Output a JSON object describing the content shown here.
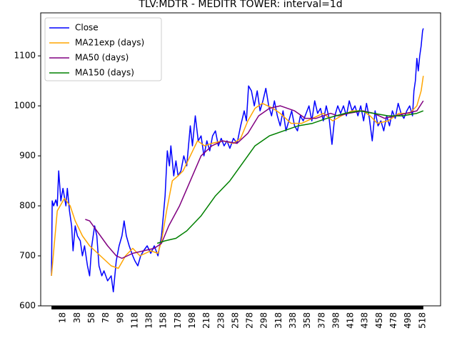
{
  "chart_data": {
    "type": "line",
    "title": "TLV:MDTR - MEDITR TOWER: interval=1d",
    "xlim": [
      -13,
      543
    ],
    "ylim": [
      600,
      1186
    ],
    "xticks": [
      18,
      38,
      58,
      78,
      98,
      118,
      138,
      158,
      178,
      198,
      218,
      238,
      258,
      278,
      298,
      318,
      338,
      358,
      378,
      398,
      418,
      438,
      458,
      478,
      498,
      518
    ],
    "yticks": [
      600,
      700,
      800,
      900,
      1000,
      1100
    ],
    "legend": "upper left",
    "grid": false,
    "series": [
      {
        "name": "Close",
        "color": "#0000ff",
        "x": [
          2,
          3,
          5,
          8,
          10,
          12,
          15,
          18,
          22,
          24,
          27,
          30,
          32,
          35,
          38,
          42,
          45,
          48,
          52,
          55,
          58,
          62,
          65,
          68,
          72,
          75,
          80,
          85,
          88,
          92,
          96,
          100,
          103,
          106,
          110,
          115,
          118,
          122,
          126,
          130,
          135,
          140,
          145,
          150,
          155,
          160,
          163,
          166,
          168,
          172,
          175,
          178,
          182,
          186,
          190,
          195,
          198,
          202,
          206,
          210,
          214,
          218,
          222,
          226,
          230,
          234,
          238,
          242,
          246,
          250,
          255,
          260,
          265,
          270,
          273,
          276,
          280,
          284,
          288,
          292,
          296,
          300,
          304,
          308,
          312,
          316,
          320,
          324,
          328,
          332,
          336,
          340,
          344,
          348,
          352,
          356,
          360,
          364,
          368,
          372,
          376,
          380,
          384,
          388,
          392,
          396,
          400,
          404,
          408,
          412,
          416,
          420,
          424,
          428,
          432,
          436,
          440,
          444,
          448,
          452,
          456,
          460,
          464,
          468,
          472,
          476,
          480,
          484,
          488,
          492,
          496,
          500,
          504,
          506,
          508,
          510,
          512,
          514,
          516,
          518,
          519
        ],
        "values": [
          660,
          810,
          800,
          812,
          800,
          870,
          810,
          835,
          800,
          835,
          790,
          760,
          710,
          760,
          740,
          730,
          700,
          720,
          680,
          660,
          720,
          760,
          740,
          680,
          660,
          670,
          650,
          660,
          628,
          690,
          720,
          740,
          770,
          740,
          720,
          700,
          690,
          680,
          700,
          710,
          720,
          705,
          720,
          700,
          740,
          820,
          910,
          880,
          920,
          860,
          890,
          860,
          870,
          900,
          880,
          960,
          920,
          980,
          930,
          940,
          900,
          930,
          910,
          940,
          950,
          920,
          935,
          920,
          930,
          915,
          935,
          925,
          960,
          990,
          970,
          1040,
          1030,
          1000,
          1030,
          990,
          1010,
          1035,
          1000,
          980,
          1010,
          980,
          960,
          990,
          950,
          970,
          990,
          960,
          950,
          980,
          970,
          985,
          1000,
          970,
          1010,
          985,
          995,
          970,
          1000,
          975,
          923,
          980,
          1000,
          985,
          1000,
          980,
          1010,
          990,
          1000,
          980,
          1000,
          970,
          1005,
          975,
          930,
          990,
          960,
          970,
          950,
          980,
          960,
          990,
          975,
          1005,
          985,
          975,
          990,
          1000,
          980,
          1030,
          1050,
          1095,
          1070,
          1100,
          1120,
          1150,
          1155
        ]
      },
      {
        "name": "MA21exp (days)",
        "color": "#ffa500",
        "x": [
          2,
          10,
          20,
          28,
          35,
          45,
          55,
          70,
          85,
          95,
          105,
          115,
          125,
          140,
          150,
          155,
          162,
          170,
          178,
          185,
          195,
          205,
          215,
          225,
          240,
          255,
          265,
          275,
          285,
          295,
          310,
          320,
          335,
          350,
          365,
          380,
          393,
          405,
          420,
          435,
          445,
          455,
          470,
          485,
          500,
          510,
          516,
          519
        ],
        "values": [
          660,
          790,
          815,
          800,
          770,
          740,
          720,
          700,
          680,
          675,
          700,
          715,
          700,
          710,
          705,
          730,
          790,
          850,
          860,
          870,
          900,
          930,
          920,
          925,
          930,
          925,
          935,
          970,
          995,
          1005,
          995,
          985,
          965,
          965,
          975,
          985,
          970,
          980,
          990,
          990,
          980,
          965,
          970,
          985,
          985,
          1000,
          1030,
          1060
        ]
      },
      {
        "name": "MA50 (days)",
        "color": "#800080",
        "x": [
          49,
          55,
          65,
          80,
          92,
          100,
          115,
          130,
          145,
          155,
          165,
          180,
          195,
          210,
          225,
          240,
          260,
          275,
          290,
          305,
          320,
          340,
          355,
          370,
          390,
          400,
          415,
          435,
          450,
          465,
          480,
          495,
          510,
          519
        ],
        "values": [
          773,
          770,
          750,
          720,
          700,
          695,
          705,
          710,
          715,
          725,
          760,
          800,
          850,
          900,
          920,
          930,
          925,
          945,
          980,
          995,
          1000,
          990,
          975,
          975,
          985,
          980,
          985,
          990,
          985,
          975,
          980,
          985,
          990,
          1010
        ]
      },
      {
        "name": "MA150 (days)",
        "color": "#008000",
        "x": [
          149,
          160,
          175,
          190,
          210,
          230,
          250,
          265,
          285,
          305,
          325,
          345,
          365,
          385,
          410,
          430,
          450,
          470,
          490,
          510,
          519
        ],
        "values": [
          725,
          730,
          735,
          750,
          780,
          820,
          850,
          880,
          920,
          940,
          950,
          960,
          965,
          975,
          985,
          990,
          985,
          980,
          980,
          985,
          990
        ]
      }
    ]
  }
}
